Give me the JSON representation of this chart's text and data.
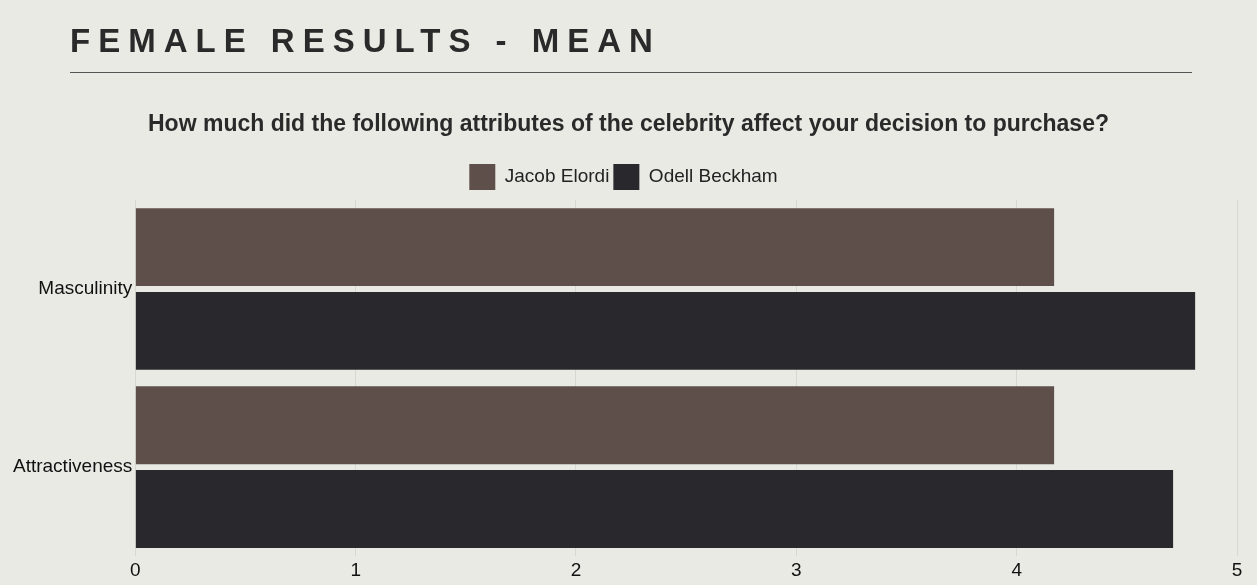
{
  "chart_data": {
    "type": "bar",
    "orientation": "horizontal",
    "title": "FEMALE RESULTS - MEAN",
    "subtitle": "How much did the following attributes of the celebrity affect your decision to purchase?",
    "categories": [
      "Masculinity",
      "Attractiveness"
    ],
    "series": [
      {
        "name": "Jacob Elordi",
        "color": "#5e4f4b",
        "values": [
          4.17,
          4.17
        ]
      },
      {
        "name": "Odell Beckham",
        "color": "#29282d",
        "values": [
          4.81,
          4.71
        ]
      }
    ],
    "xlim": [
      0,
      5
    ],
    "xticks": [
      0,
      1,
      2,
      3,
      4,
      5
    ],
    "grid": "x",
    "legend": "top"
  }
}
